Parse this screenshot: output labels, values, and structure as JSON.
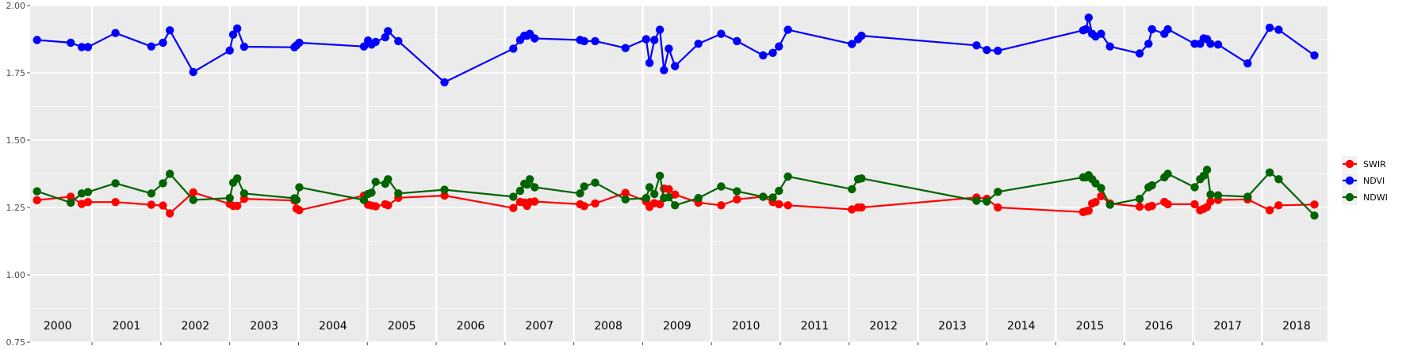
{
  "chart_data": {
    "type": "line",
    "title": "",
    "xlabel": "",
    "ylabel": "",
    "ylim": [
      0.75,
      2.0
    ],
    "xlim": [
      1999.6,
      2018.45
    ],
    "grid": true,
    "legend_position": "right",
    "y_ticks": [
      {
        "value": 0.75,
        "label": "0.75"
      },
      {
        "value": 1.0,
        "label": "1.00"
      },
      {
        "value": 1.25,
        "label": "1.25"
      },
      {
        "value": 1.5,
        "label": "1.50"
      },
      {
        "value": 1.75,
        "label": "1.75"
      },
      {
        "value": 2.0,
        "label": "2.00"
      }
    ],
    "year_boundaries": [
      2000.5,
      2001.5,
      2002.5,
      2003.5,
      2004.5,
      2005.5,
      2006.5,
      2007.5,
      2008.5,
      2009.5,
      2010.5,
      2011.5,
      2012.5,
      2013.5,
      2014.5,
      2015.5,
      2016.5,
      2017.5
    ],
    "year_labels": [
      {
        "x": 2000,
        "label": "2000"
      },
      {
        "x": 2001,
        "label": "2001"
      },
      {
        "x": 2002,
        "label": "2002"
      },
      {
        "x": 2003,
        "label": "2003"
      },
      {
        "x": 2004,
        "label": "2004"
      },
      {
        "x": 2005,
        "label": "2005"
      },
      {
        "x": 2006,
        "label": "2006"
      },
      {
        "x": 2007,
        "label": "2007"
      },
      {
        "x": 2008,
        "label": "2008"
      },
      {
        "x": 2009,
        "label": "2009"
      },
      {
        "x": 2010,
        "label": "2010"
      },
      {
        "x": 2011,
        "label": "2011"
      },
      {
        "x": 2012,
        "label": "2012"
      },
      {
        "x": 2013,
        "label": "2013"
      },
      {
        "x": 2014,
        "label": "2014"
      },
      {
        "x": 2015,
        "label": "2015"
      },
      {
        "x": 2016,
        "label": "2016"
      },
      {
        "x": 2017,
        "label": "2017"
      },
      {
        "x": 2018,
        "label": "2018"
      }
    ],
    "series": [
      {
        "name": "SWIR",
        "color": "#ff0000",
        "x": [
          1999.7,
          2000.19,
          2000.35,
          2000.44,
          2000.84,
          2001.36,
          2001.53,
          2001.63,
          2001.97,
          2002.5,
          2002.55,
          2002.61,
          2002.71,
          2003.44,
          2003.47,
          2003.51,
          2004.45,
          2004.51,
          2004.56,
          2004.62,
          2004.76,
          2004.8,
          2004.95,
          2005.62,
          2006.62,
          2006.72,
          2006.78,
          2006.82,
          2006.86,
          2006.93,
          2007.59,
          2007.65,
          2007.81,
          2008.25,
          2008.55,
          2008.6,
          2008.67,
          2008.75,
          2008.81,
          2008.88,
          2008.97,
          2009.31,
          2009.64,
          2009.87,
          2010.25,
          2010.39,
          2010.48,
          2010.61,
          2011.54,
          2011.63,
          2011.68,
          2013.35,
          2013.5,
          2013.66,
          2014.9,
          2014.94,
          2014.98,
          2015.03,
          2015.08,
          2015.16,
          2015.29,
          2015.72,
          2015.85,
          2015.9,
          2016.08,
          2016.13,
          2016.52,
          2016.6,
          2016.65,
          2016.7,
          2016.75,
          2016.86,
          2017.29,
          2017.61,
          2017.74,
          2018.26
        ],
        "y": [
          1.277,
          1.29,
          1.263,
          1.27,
          1.27,
          1.26,
          1.257,
          1.228,
          1.306,
          1.263,
          1.256,
          1.256,
          1.282,
          1.276,
          1.246,
          1.24,
          1.294,
          1.26,
          1.257,
          1.254,
          1.262,
          1.258,
          1.286,
          1.294,
          1.248,
          1.271,
          1.268,
          1.256,
          1.27,
          1.272,
          1.262,
          1.255,
          1.265,
          1.304,
          1.272,
          1.252,
          1.266,
          1.262,
          1.32,
          1.318,
          1.298,
          1.268,
          1.258,
          1.28,
          1.29,
          1.27,
          1.262,
          1.258,
          1.243,
          1.25,
          1.25,
          1.287,
          1.282,
          1.25,
          1.233,
          1.236,
          1.238,
          1.265,
          1.27,
          1.292,
          1.265,
          1.253,
          1.252,
          1.256,
          1.271,
          1.262,
          1.262,
          1.24,
          1.245,
          1.252,
          1.272,
          1.278,
          1.28,
          1.24,
          1.258,
          1.261
        ]
      },
      {
        "name": "NDVI",
        "color": "#0000ff",
        "x": [
          1999.7,
          2000.19,
          2000.35,
          2000.44,
          2000.84,
          2001.36,
          2001.53,
          2001.63,
          2001.97,
          2002.5,
          2002.55,
          2002.61,
          2002.71,
          2003.44,
          2003.47,
          2003.51,
          2004.45,
          2004.51,
          2004.56,
          2004.62,
          2004.76,
          2004.8,
          2004.95,
          2005.62,
          2006.62,
          2006.72,
          2006.78,
          2006.82,
          2006.86,
          2006.93,
          2007.59,
          2007.65,
          2007.81,
          2008.25,
          2008.55,
          2008.6,
          2008.67,
          2008.75,
          2008.81,
          2008.88,
          2008.97,
          2009.31,
          2009.64,
          2009.87,
          2010.25,
          2010.39,
          2010.48,
          2010.61,
          2011.54,
          2011.63,
          2011.68,
          2013.35,
          2013.5,
          2013.66,
          2014.9,
          2014.94,
          2014.98,
          2015.03,
          2015.08,
          2015.16,
          2015.29,
          2015.72,
          2015.85,
          2015.9,
          2016.08,
          2016.13,
          2016.52,
          2016.6,
          2016.65,
          2016.7,
          2016.75,
          2016.86,
          2017.29,
          2017.61,
          2017.74,
          2018.26
        ],
        "y": [
          1.872,
          1.862,
          1.846,
          1.846,
          1.898,
          1.848,
          1.862,
          1.908,
          1.753,
          1.833,
          1.892,
          1.915,
          1.847,
          1.845,
          1.852,
          1.862,
          1.848,
          1.87,
          1.855,
          1.865,
          1.882,
          1.905,
          1.868,
          1.715,
          1.84,
          1.872,
          1.888,
          1.888,
          1.895,
          1.878,
          1.872,
          1.868,
          1.868,
          1.842,
          1.875,
          1.787,
          1.872,
          1.91,
          1.76,
          1.84,
          1.775,
          1.858,
          1.895,
          1.868,
          1.815,
          1.824,
          1.848,
          1.91,
          1.857,
          1.875,
          1.888,
          1.852,
          1.835,
          1.832,
          1.908,
          1.912,
          1.955,
          1.895,
          1.885,
          1.895,
          1.848,
          1.822,
          1.858,
          1.912,
          1.895,
          1.912,
          1.858,
          1.858,
          1.878,
          1.875,
          1.858,
          1.855,
          1.785,
          1.918,
          1.91,
          1.815
        ]
      },
      {
        "name": "NDWI",
        "color": "#006400",
        "x": [
          1999.7,
          2000.19,
          2000.35,
          2000.44,
          2000.84,
          2001.36,
          2001.53,
          2001.63,
          2001.97,
          2002.5,
          2002.55,
          2002.61,
          2002.71,
          2003.44,
          2003.47,
          2003.51,
          2004.45,
          2004.51,
          2004.56,
          2004.62,
          2004.76,
          2004.8,
          2004.95,
          2005.62,
          2006.62,
          2006.72,
          2006.78,
          2006.82,
          2006.86,
          2006.93,
          2007.59,
          2007.65,
          2007.81,
          2008.25,
          2008.55,
          2008.6,
          2008.67,
          2008.75,
          2008.81,
          2008.88,
          2008.97,
          2009.31,
          2009.64,
          2009.87,
          2010.25,
          2010.39,
          2010.48,
          2010.61,
          2011.54,
          2011.63,
          2011.68,
          2013.35,
          2013.5,
          2013.66,
          2014.9,
          2014.94,
          2014.98,
          2015.03,
          2015.08,
          2015.16,
          2015.29,
          2015.72,
          2015.85,
          2015.9,
          2016.08,
          2016.13,
          2016.52,
          2016.6,
          2016.65,
          2016.7,
          2016.75,
          2016.86,
          2017.29,
          2017.61,
          2017.74,
          2018.26
        ],
        "y": [
          1.31,
          1.268,
          1.302,
          1.307,
          1.34,
          1.302,
          1.34,
          1.375,
          1.278,
          1.285,
          1.342,
          1.358,
          1.302,
          1.284,
          1.278,
          1.325,
          1.278,
          1.3,
          1.305,
          1.345,
          1.338,
          1.355,
          1.302,
          1.316,
          1.29,
          1.312,
          1.338,
          1.335,
          1.355,
          1.325,
          1.302,
          1.328,
          1.342,
          1.28,
          1.285,
          1.325,
          1.3,
          1.368,
          1.285,
          1.288,
          1.258,
          1.285,
          1.328,
          1.31,
          1.29,
          1.287,
          1.312,
          1.365,
          1.318,
          1.355,
          1.358,
          1.275,
          1.272,
          1.308,
          1.362,
          1.362,
          1.37,
          1.355,
          1.34,
          1.322,
          1.26,
          1.282,
          1.325,
          1.332,
          1.362,
          1.375,
          1.325,
          1.355,
          1.368,
          1.39,
          1.298,
          1.295,
          1.29,
          1.38,
          1.355,
          1.22
        ]
      }
    ]
  }
}
